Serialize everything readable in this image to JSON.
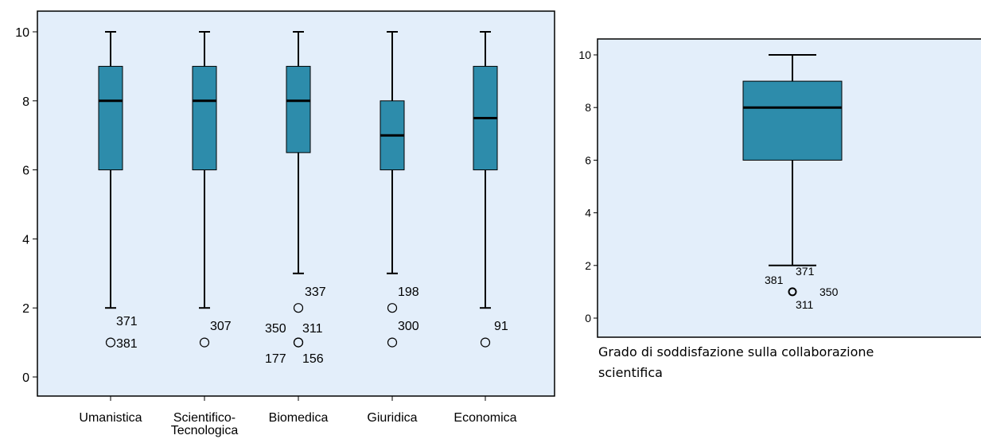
{
  "chart_data": [
    {
      "type": "boxplot",
      "categories": [
        "Umanistica",
        "Scientifico-Tecnologica",
        "Biomedica",
        "Giuridica",
        "Economica"
      ],
      "category_display": [
        [
          "Umanistica"
        ],
        [
          "Scientifico-",
          "Tecnologica"
        ],
        [
          "Biomedica"
        ],
        [
          "Giuridica"
        ],
        [
          "Economica"
        ]
      ],
      "ylim": [
        0,
        10
      ],
      "yticks": [
        "0",
        "2",
        "4",
        "6",
        "8",
        "10"
      ],
      "boxes": [
        {
          "whisker_low": 2,
          "q1": 6,
          "median": 8,
          "q3": 9,
          "whisker_high": 10,
          "outliers": [
            1
          ],
          "labels": [
            {
              "text": "371",
              "near": 1.5
            },
            {
              "text": "381",
              "near": 1
            }
          ]
        },
        {
          "whisker_low": 2,
          "q1": 6,
          "median": 8,
          "q3": 9,
          "whisker_high": 10,
          "outliers": [
            1
          ],
          "labels": [
            {
              "text": "307",
              "near": 1.5
            }
          ]
        },
        {
          "whisker_low": 3,
          "q1": 6.5,
          "median": 8,
          "q3": 9,
          "whisker_high": 10,
          "outliers": [
            2,
            1,
            1
          ],
          "labels": [
            {
              "text": "337",
              "near": 2.5
            },
            {
              "text": "350",
              "near": 1.5
            },
            {
              "text": "311",
              "near": 1.5
            },
            {
              "text": "177",
              "near": 0.5
            },
            {
              "text": "156",
              "near": 0.5
            }
          ]
        },
        {
          "whisker_low": 3,
          "q1": 6,
          "median": 7,
          "q3": 8,
          "whisker_high": 10,
          "outliers": [
            2,
            1
          ],
          "labels": [
            {
              "text": "198",
              "near": 2.5
            },
            {
              "text": "300",
              "near": 1.5
            }
          ]
        },
        {
          "whisker_low": 2,
          "q1": 6,
          "median": 7.5,
          "q3": 9,
          "whisker_high": 10,
          "outliers": [
            1
          ],
          "labels": [
            {
              "text": "91",
              "near": 1.5
            }
          ]
        }
      ],
      "box_color": "#2d8cab",
      "plot_background": "#e3eefa"
    },
    {
      "type": "boxplot",
      "xlabel": "Grado di soddisfazione sulla collaborazione scientifica",
      "ylim": [
        0,
        10
      ],
      "yticks": [
        "0",
        "2",
        "4",
        "6",
        "8",
        "10"
      ],
      "boxes": [
        {
          "whisker_low": 2,
          "q1": 6,
          "median": 8,
          "q3": 9,
          "whisker_high": 10,
          "outliers": [
            1
          ],
          "labels": [
            {
              "text": "371"
            },
            {
              "text": "381"
            },
            {
              "text": "350"
            },
            {
              "text": "311"
            }
          ]
        }
      ],
      "box_color": "#2d8cab",
      "plot_background": "#e3eefa"
    }
  ]
}
